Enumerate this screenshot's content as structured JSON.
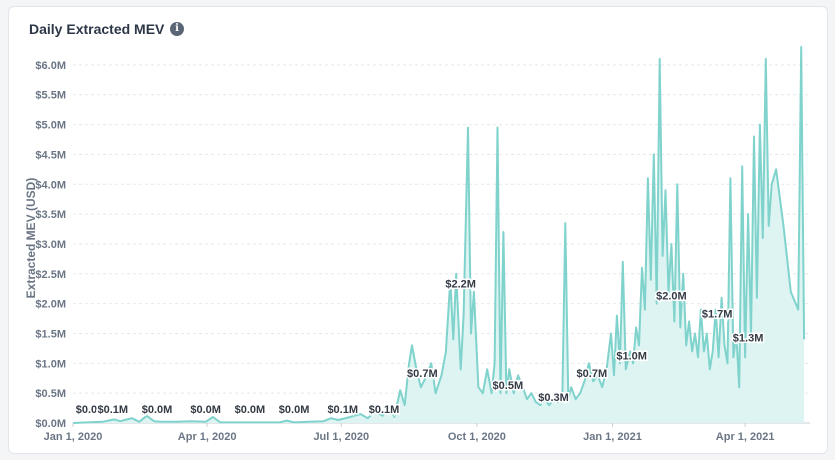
{
  "header": {
    "title": "Daily Extracted MEV",
    "info_icon": "info-icon"
  },
  "colors": {
    "line": "#7fd3cc",
    "fill": "#def4f2",
    "grid": "#e5e7eb"
  },
  "chart_data": {
    "type": "area",
    "title": "Daily Extracted MEV",
    "xlabel": "",
    "ylabel": "Extracted MEV (USD)",
    "ylim": [
      0,
      6.3
    ],
    "y_unit": "$M",
    "y_ticks": [
      "$0.0M",
      "$0.5M",
      "$1.0M",
      "$1.5M",
      "$2.0M",
      "$2.5M",
      "$3.0M",
      "$3.5M",
      "$4.0M",
      "$4.5M",
      "$5.0M",
      "$5.5M",
      "$6.0M"
    ],
    "y_tick_values": [
      0,
      0.5,
      1.0,
      1.5,
      2.0,
      2.5,
      3.0,
      3.5,
      4.0,
      4.5,
      5.0,
      5.5,
      6.0
    ],
    "x_ticks": [
      "Jan 1, 2020",
      "Apr 1, 2020",
      "Jul 1, 2020",
      "Oct 1, 2020",
      "Jan 1, 2021",
      "Apr 1, 2021"
    ],
    "x_tick_days": [
      0,
      91,
      182,
      274,
      366,
      456
    ],
    "x_max_days": 500,
    "series": [
      {
        "name": "Daily Extracted MEV",
        "points": [
          [
            0,
            0.0
          ],
          [
            10,
            0.01
          ],
          [
            20,
            0.02
          ],
          [
            28,
            0.06
          ],
          [
            32,
            0.03
          ],
          [
            40,
            0.08
          ],
          [
            45,
            0.02
          ],
          [
            50,
            0.12
          ],
          [
            55,
            0.03
          ],
          [
            60,
            0.02
          ],
          [
            70,
            0.02
          ],
          [
            80,
            0.03
          ],
          [
            90,
            0.02
          ],
          [
            95,
            0.1
          ],
          [
            100,
            0.01
          ],
          [
            110,
            0.01
          ],
          [
            120,
            0.01
          ],
          [
            130,
            0.01
          ],
          [
            140,
            0.01
          ],
          [
            145,
            0.04
          ],
          [
            150,
            0.01
          ],
          [
            160,
            0.02
          ],
          [
            170,
            0.03
          ],
          [
            175,
            0.08
          ],
          [
            180,
            0.05
          ],
          [
            188,
            0.1
          ],
          [
            195,
            0.15
          ],
          [
            200,
            0.08
          ],
          [
            205,
            0.2
          ],
          [
            210,
            0.12
          ],
          [
            215,
            0.28
          ],
          [
            218,
            0.1
          ],
          [
            222,
            0.55
          ],
          [
            225,
            0.3
          ],
          [
            228,
            1.0
          ],
          [
            230,
            1.3
          ],
          [
            233,
            0.9
          ],
          [
            236,
            0.6
          ],
          [
            240,
            0.8
          ],
          [
            243,
            1.0
          ],
          [
            246,
            0.5
          ],
          [
            250,
            0.8
          ],
          [
            253,
            1.2
          ],
          [
            256,
            2.4
          ],
          [
            258,
            1.4
          ],
          [
            260,
            2.5
          ],
          [
            263,
            0.9
          ],
          [
            265,
            1.8
          ],
          [
            268,
            4.95
          ],
          [
            270,
            1.5
          ],
          [
            272,
            2.2
          ],
          [
            275,
            0.6
          ],
          [
            278,
            0.5
          ],
          [
            281,
            0.9
          ],
          [
            284,
            0.5
          ],
          [
            286,
            1.0
          ],
          [
            288,
            4.95
          ],
          [
            290,
            0.5
          ],
          [
            292,
            3.2
          ],
          [
            294,
            0.5
          ],
          [
            296,
            0.9
          ],
          [
            299,
            0.5
          ],
          [
            302,
            0.8
          ],
          [
            305,
            0.6
          ],
          [
            308,
            0.4
          ],
          [
            311,
            0.5
          ],
          [
            314,
            0.35
          ],
          [
            317,
            0.3
          ],
          [
            320,
            0.4
          ],
          [
            323,
            0.3
          ],
          [
            326,
            0.4
          ],
          [
            329,
            0.35
          ],
          [
            332,
            0.5
          ],
          [
            334,
            3.35
          ],
          [
            336,
            0.4
          ],
          [
            338,
            0.6
          ],
          [
            341,
            0.4
          ],
          [
            344,
            0.5
          ],
          [
            347,
            0.7
          ],
          [
            350,
            1.0
          ],
          [
            353,
            0.7
          ],
          [
            356,
            0.8
          ],
          [
            359,
            0.6
          ],
          [
            362,
            0.9
          ],
          [
            365,
            1.5
          ],
          [
            367,
            0.8
          ],
          [
            369,
            1.8
          ],
          [
            371,
            1.0
          ],
          [
            373,
            2.7
          ],
          [
            375,
            0.9
          ],
          [
            378,
            1.2
          ],
          [
            380,
            1.0
          ],
          [
            382,
            1.6
          ],
          [
            384,
            1.3
          ],
          [
            386,
            2.6
          ],
          [
            388,
            1.9
          ],
          [
            390,
            4.1
          ],
          [
            392,
            2.4
          ],
          [
            394,
            4.5
          ],
          [
            396,
            2.0
          ],
          [
            398,
            6.1
          ],
          [
            400,
            2.8
          ],
          [
            402,
            3.9
          ],
          [
            404,
            2.2
          ],
          [
            406,
            3.0
          ],
          [
            408,
            1.7
          ],
          [
            410,
            4.0
          ],
          [
            412,
            1.6
          ],
          [
            414,
            2.5
          ],
          [
            416,
            1.3
          ],
          [
            418,
            1.7
          ],
          [
            420,
            1.2
          ],
          [
            422,
            1.5
          ],
          [
            424,
            1.1
          ],
          [
            426,
            1.9
          ],
          [
            428,
            1.2
          ],
          [
            430,
            1.5
          ],
          [
            432,
            0.9
          ],
          [
            434,
            1.2
          ],
          [
            436,
            1.9
          ],
          [
            438,
            1.1
          ],
          [
            440,
            2.1
          ],
          [
            442,
            1.3
          ],
          [
            444,
            1.0
          ],
          [
            446,
            4.1
          ],
          [
            448,
            1.1
          ],
          [
            450,
            1.5
          ],
          [
            452,
            0.6
          ],
          [
            454,
            4.3
          ],
          [
            456,
            1.1
          ],
          [
            458,
            3.5
          ],
          [
            460,
            1.5
          ],
          [
            462,
            4.8
          ],
          [
            464,
            2.1
          ],
          [
            466,
            5.0
          ],
          [
            468,
            3.1
          ],
          [
            470,
            6.1
          ],
          [
            472,
            3.3
          ],
          [
            474,
            4.0
          ],
          [
            477,
            4.25
          ],
          [
            482,
            3.3
          ],
          [
            487,
            2.2
          ],
          [
            492,
            1.9
          ],
          [
            494,
            6.3
          ],
          [
            496,
            1.4
          ]
        ]
      }
    ],
    "data_labels": [
      {
        "label": "$0.0M",
        "day": 0,
        "value": 0.0
      },
      {
        "label": "$0.1M",
        "day": 27,
        "value": 0.1
      },
      {
        "label": "$0.0M",
        "day": 57,
        "value": 0.0
      },
      {
        "label": "$0.0M",
        "day": 90,
        "value": 0.0
      },
      {
        "label": "$0.0M",
        "day": 120,
        "value": 0.0
      },
      {
        "label": "$0.0M",
        "day": 150,
        "value": 0.0
      },
      {
        "label": "$0.1M",
        "day": 183,
        "value": 0.1
      },
      {
        "label": "$0.1M",
        "day": 211,
        "value": 0.1
      },
      {
        "label": "$0.7M",
        "day": 237,
        "value": 0.7
      },
      {
        "label": "$2.2M",
        "day": 263,
        "value": 2.2
      },
      {
        "label": "$0.5M",
        "day": 295,
        "value": 0.5
      },
      {
        "label": "$0.3M",
        "day": 326,
        "value": 0.3
      },
      {
        "label": "$0.7M",
        "day": 352,
        "value": 0.7
      },
      {
        "label": "$1.0M",
        "day": 379,
        "value": 1.0
      },
      {
        "label": "$2.0M",
        "day": 406,
        "value": 2.0
      },
      {
        "label": "$1.7M",
        "day": 437,
        "value": 1.7
      },
      {
        "label": "$1.3M",
        "day": 458,
        "value": 1.3
      }
    ]
  }
}
